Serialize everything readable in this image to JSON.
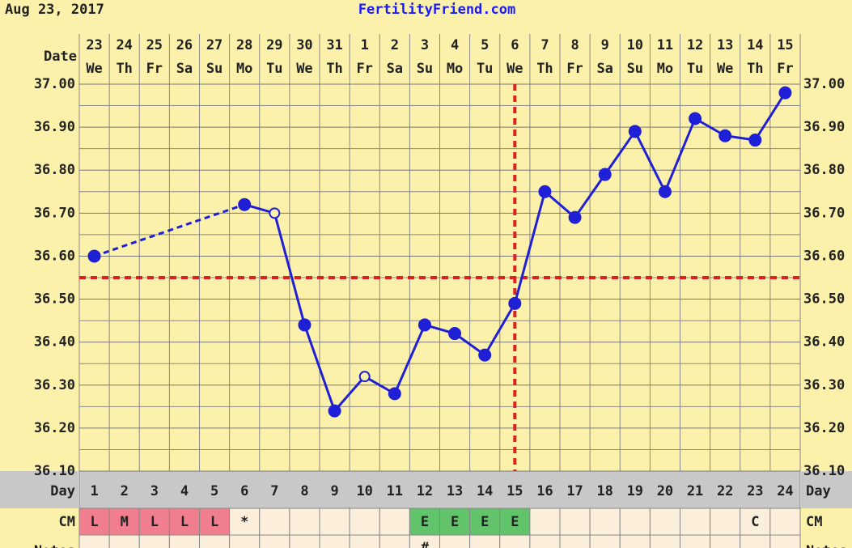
{
  "header": {
    "date": "Aug 23, 2017",
    "site": "FertilityFriend.com"
  },
  "chart_data": {
    "type": "line",
    "date_label": "Date",
    "x_dates": [
      "23",
      "24",
      "25",
      "26",
      "27",
      "28",
      "29",
      "30",
      "31",
      "1",
      "2",
      "3",
      "4",
      "5",
      "6",
      "7",
      "8",
      "9",
      "10",
      "11",
      "12",
      "13",
      "14",
      "15"
    ],
    "x_weekdays": [
      "We",
      "Th",
      "Fr",
      "Sa",
      "Su",
      "Mo",
      "Tu",
      "We",
      "Th",
      "Fr",
      "Sa",
      "Su",
      "Mo",
      "Tu",
      "We",
      "Th",
      "Fr",
      "Sa",
      "Su",
      "Mo",
      "Tu",
      "We",
      "Th",
      "Fr"
    ],
    "ylim": [
      36.1,
      37.0
    ],
    "yticks": [
      {
        "value": 37.0,
        "label": "37.00"
      },
      {
        "value": 36.9,
        "label": "36.90"
      },
      {
        "value": 36.8,
        "label": "36.80"
      },
      {
        "value": 36.7,
        "label": "36.70"
      },
      {
        "value": 36.6,
        "label": "36.60"
      },
      {
        "value": 36.5,
        "label": "36.50"
      },
      {
        "value": 36.4,
        "label": "36.40"
      },
      {
        "value": 36.3,
        "label": "36.30"
      },
      {
        "value": 36.2,
        "label": "36.20"
      },
      {
        "value": 36.1,
        "label": "36.10"
      }
    ],
    "grid": true,
    "series": [
      {
        "color": "#1f1fd6",
        "values": [
          36.6,
          null,
          null,
          null,
          null,
          36.72,
          36.7,
          36.44,
          36.24,
          36.32,
          36.28,
          36.44,
          36.42,
          36.37,
          36.49,
          36.75,
          36.69,
          36.79,
          36.89,
          36.75,
          36.92,
          36.88,
          36.87,
          36.98
        ],
        "open": [
          false,
          false,
          false,
          false,
          false,
          false,
          true,
          false,
          false,
          true,
          false,
          false,
          false,
          false,
          false,
          false,
          false,
          false,
          false,
          false,
          false,
          false,
          false,
          false
        ]
      }
    ],
    "coverline": 36.55,
    "ovulation_day": 15,
    "line_color": "#e02020",
    "day_label": "Day",
    "cycle_days": [
      1,
      2,
      3,
      4,
      5,
      6,
      7,
      8,
      9,
      10,
      11,
      12,
      13,
      14,
      15,
      16,
      17,
      18,
      19,
      20,
      21,
      22,
      23,
      24
    ],
    "cm_label": "CM",
    "cm": [
      "L",
      "M",
      "L",
      "L",
      "L",
      "*",
      null,
      null,
      null,
      null,
      null,
      "E",
      "E",
      "E",
      "E",
      null,
      null,
      null,
      null,
      null,
      null,
      null,
      "C",
      null
    ],
    "cm_fill": [
      "#f07e8e",
      "#f07e8e",
      "#f07e8e",
      "#f07e8e",
      "#f07e8e",
      null,
      null,
      null,
      null,
      null,
      null,
      "#62c46a",
      "#62c46a",
      "#62c46a",
      "#62c46a",
      null,
      null,
      null,
      null,
      null,
      null,
      null,
      null,
      null
    ],
    "notes_label": "Notes",
    "notes": [
      null,
      null,
      null,
      null,
      null,
      null,
      null,
      null,
      null,
      null,
      null,
      "#",
      null,
      null,
      null,
      null,
      null,
      null,
      null,
      null,
      null,
      null,
      null,
      null
    ]
  }
}
